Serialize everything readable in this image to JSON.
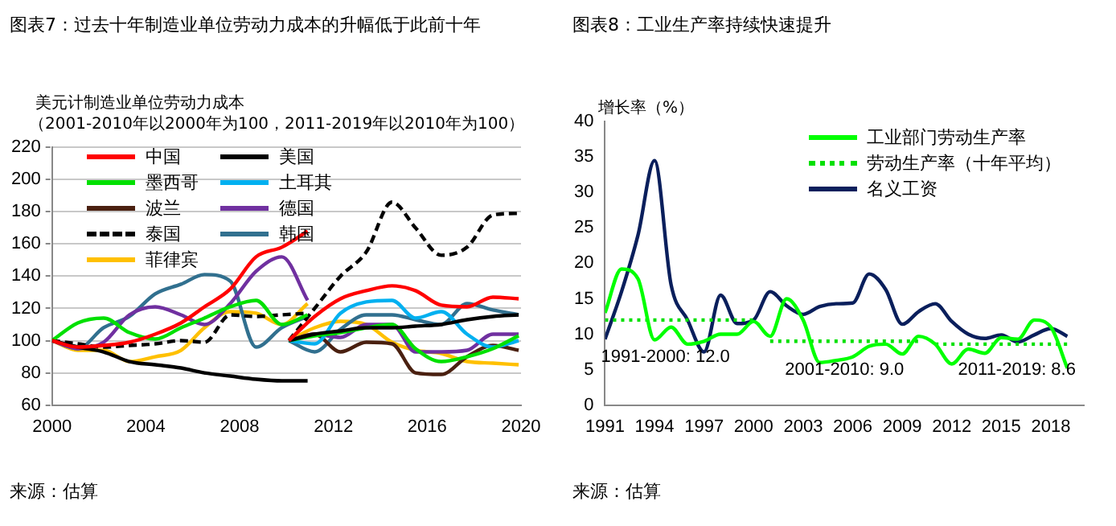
{
  "chart_data": [
    {
      "type": "line",
      "title": "图表7：过去十年制造业单位劳动力成本的升幅低于此前十年",
      "ylabel": "美元计制造业单位劳动力成本",
      "subtitle": "（2001-2010年以2000年为100，2011-2019年以2010年为100）",
      "annotations": [
        "来源：估算"
      ],
      "xlim": [
        2000,
        2020
      ],
      "xticks": [
        2000,
        2004,
        2008,
        2012,
        2016,
        2020
      ],
      "ylim": [
        60,
        220
      ],
      "yticks": [
        60,
        80,
        100,
        120,
        140,
        160,
        180,
        200,
        220
      ],
      "grid": "y",
      "legend": "top left",
      "marker": "none",
      "x": [
        2000,
        2001.1,
        2002.2,
        2003.3,
        2004.4,
        2005.5,
        2006.5,
        2007.6,
        2008.7,
        2009.8,
        2010.9,
        2010.5,
        2010.1,
        2011.2,
        2012.3,
        2013.4,
        2014.5,
        2015.5,
        2016.6,
        2017.7,
        2018.8,
        2019.9
      ],
      "series": [
        {
          "name": "中国",
          "color": "#ff0000",
          "line_style": "solid",
          "values": [
            100,
            96,
            97,
            99,
            104,
            111,
            121,
            132,
            152,
            158,
            168,
            null,
            100,
            115,
            126,
            131,
            134,
            131,
            122,
            121,
            127,
            126
          ]
        },
        {
          "name": "美国",
          "color": "#000000",
          "line_style": "solid",
          "values": [
            100,
            96,
            93,
            87,
            85,
            83,
            80,
            78,
            76,
            75,
            75,
            null,
            100,
            104,
            106,
            108,
            108,
            109,
            110,
            113,
            115,
            116
          ]
        },
        {
          "name": "墨西哥",
          "color": "#00e000",
          "line_style": "solid",
          "values": [
            100,
            111,
            114,
            105,
            101,
            108,
            114,
            121,
            125,
            110,
            116,
            null,
            100,
            103,
            105,
            108,
            110,
            95,
            87,
            90,
            95,
            103
          ]
        },
        {
          "name": "土耳其",
          "color": "#00b0f0",
          "line_style": "solid",
          "x": [
            2010.1,
            2011.2,
            2012.3,
            2013.4,
            2014.5,
            2015.5,
            2016.6,
            2017.7,
            2018.8,
            2019.9
          ],
          "values": [
            100,
            98,
            117,
            124,
            125,
            114,
            118,
            104,
            96,
            100
          ]
        },
        {
          "name": "波兰",
          "color": "#4a2010",
          "line_style": "solid",
          "x": [
            2010.1,
            2011.2,
            2012.3,
            2013.4,
            2014.5,
            2015.5,
            2016.6,
            2017.7,
            2018.8,
            2019.9
          ],
          "values": [
            100,
            104,
            93,
            99,
            98,
            80,
            79,
            90,
            97,
            94
          ]
        },
        {
          "name": "德国",
          "color": "#7030a0",
          "line_style": "solid",
          "values": [
            100,
            95,
            99,
            116,
            121,
            116,
            110,
            123,
            143,
            152,
            125,
            null,
            100,
            104,
            102,
            110,
            110,
            93,
            93,
            94,
            104,
            104
          ]
        },
        {
          "name": "泰国",
          "color": "#000000",
          "line_style": "dashed",
          "values": [
            100,
            98,
            96,
            97,
            98,
            100,
            99,
            116,
            115,
            116,
            117,
            null,
            100,
            120,
            140,
            155,
            186,
            170,
            153,
            158,
            178,
            179
          ]
        },
        {
          "name": "韩国",
          "color": "#31708f",
          "line_style": "solid",
          "values": [
            100,
            95,
            108,
            115,
            129,
            135,
            141,
            137,
            96,
            108,
            115,
            null,
            100,
            93,
            107,
            116,
            116,
            113,
            110,
            123,
            119,
            116
          ]
        },
        {
          "name": "菲律宾",
          "color": "#ffc000",
          "line_style": "solid",
          "values": [
            100,
            94,
            94,
            87,
            90,
            94,
            108,
            118,
            117,
            110,
            123,
            null,
            100,
            108,
            112,
            110,
            99,
            94,
            92,
            87,
            86,
            85
          ]
        }
      ]
    },
    {
      "type": "line",
      "title": "图表8：工业生产率持续快速提升",
      "ylabel": "增长率（%）",
      "xlim": [
        1991,
        2020
      ],
      "xticks": [
        1991,
        1994,
        1997,
        2000,
        2003,
        2006,
        2009,
        2012,
        2015,
        2018
      ],
      "ylim": [
        0,
        40
      ],
      "yticks": [
        0,
        5,
        10,
        15,
        20,
        25,
        30,
        35,
        40
      ],
      "grid": false,
      "legend": "top right",
      "marker": "none",
      "annotations": [
        "来源：估算",
        "1991-2000: 12.0",
        "2001-2010: 9.0",
        "2011-2019: 8.6"
      ],
      "x": [
        1991,
        1992,
        1993,
        1994,
        1995,
        1996,
        1997,
        1998,
        1999,
        2000,
        2001,
        2002,
        2003,
        2004,
        2005,
        2006,
        2007,
        2008,
        2009,
        2010,
        2011,
        2012,
        2013,
        2014,
        2015,
        2016,
        2017,
        2018,
        2019
      ],
      "series": [
        {
          "name": "工业部门劳动生产率",
          "color": "#00ff00",
          "line_style": "solid",
          "values": [
            13,
            19.2,
            17.8,
            9.2,
            11,
            8.6,
            9,
            10,
            10,
            11.8,
            9.7,
            15,
            12,
            6,
            6.3,
            6.8,
            8.3,
            8.6,
            7.2,
            9.7,
            8.6,
            5.8,
            7.9,
            7.3,
            9.5,
            9.3,
            12,
            11,
            5.2
          ]
        },
        {
          "name": "劳动生产率（十年平均）",
          "color": "#00e000",
          "line_style": "dotted",
          "x": [
            1991,
            2000,
            2000.5,
            2001,
            2010,
            2010.5,
            2011,
            2019
          ],
          "values": [
            12,
            12,
            null,
            9,
            9,
            null,
            8.6,
            8.6
          ]
        },
        {
          "name": "名义工资",
          "color": "#0a1f5c",
          "line_style": "solid",
          "values": [
            9.3,
            16,
            24,
            34.5,
            17,
            12,
            7.5,
            15.5,
            11.5,
            12,
            16,
            14,
            12.8,
            13.9,
            14.3,
            14.4,
            18.5,
            16.3,
            11.4,
            13.2,
            14.3,
            11.8,
            10,
            9.4,
            9.9,
            8.9,
            9.9,
            10.8,
            9.7
          ]
        }
      ]
    }
  ]
}
